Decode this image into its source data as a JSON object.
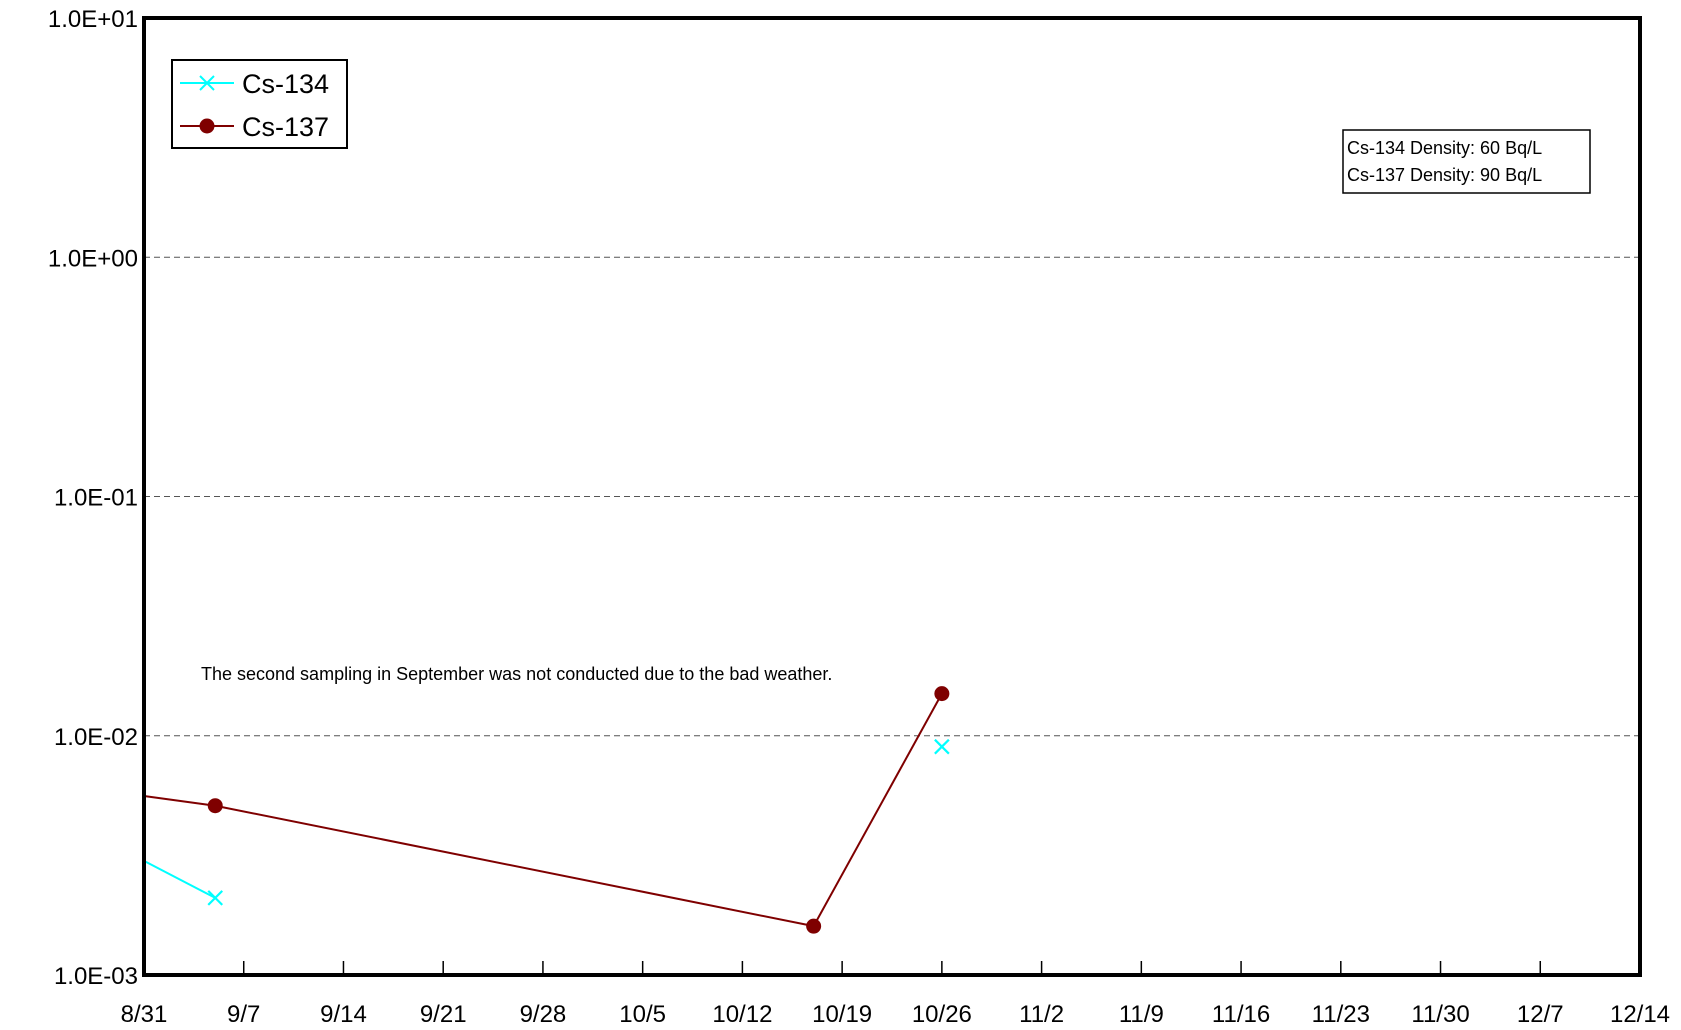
{
  "chart_data": {
    "type": "line",
    "x": [
      "8/31",
      "9/5",
      "10/17",
      "10/26"
    ],
    "series": [
      {
        "name": "Cs-134",
        "color": "#00ffff",
        "marker": "x",
        "values": [
          0.003,
          0.0021,
          null,
          0.009
        ]
      },
      {
        "name": "Cs-137",
        "color": "#7f0000",
        "marker": "circle",
        "values": [
          0.0056,
          0.0051,
          0.0016,
          0.015
        ]
      }
    ],
    "y_scale": "log",
    "ylim": [
      0.001,
      10
    ],
    "ytick_labels": [
      "1.0E-03",
      "1.0E-02",
      "1.0E-01",
      "1.0E+00",
      "1.0E+01"
    ],
    "xlim": [
      "8/31",
      "12/14"
    ],
    "xtick_labels": [
      "8/31",
      "9/7",
      "9/14",
      "9/21",
      "9/28",
      "10/5",
      "10/12",
      "10/19",
      "10/26",
      "11/2",
      "11/9",
      "11/16",
      "11/23",
      "11/30",
      "12/7",
      "12/14"
    ],
    "grid": "horizontal dashed",
    "legend_position": "top-left",
    "density_box": {
      "lines": [
        "Cs-134 Density: 60 Bq/L",
        "Cs-137 Density: 90 Bq/L"
      ]
    },
    "annotation": "The second sampling in September was not conducted due to the bad weather."
  }
}
